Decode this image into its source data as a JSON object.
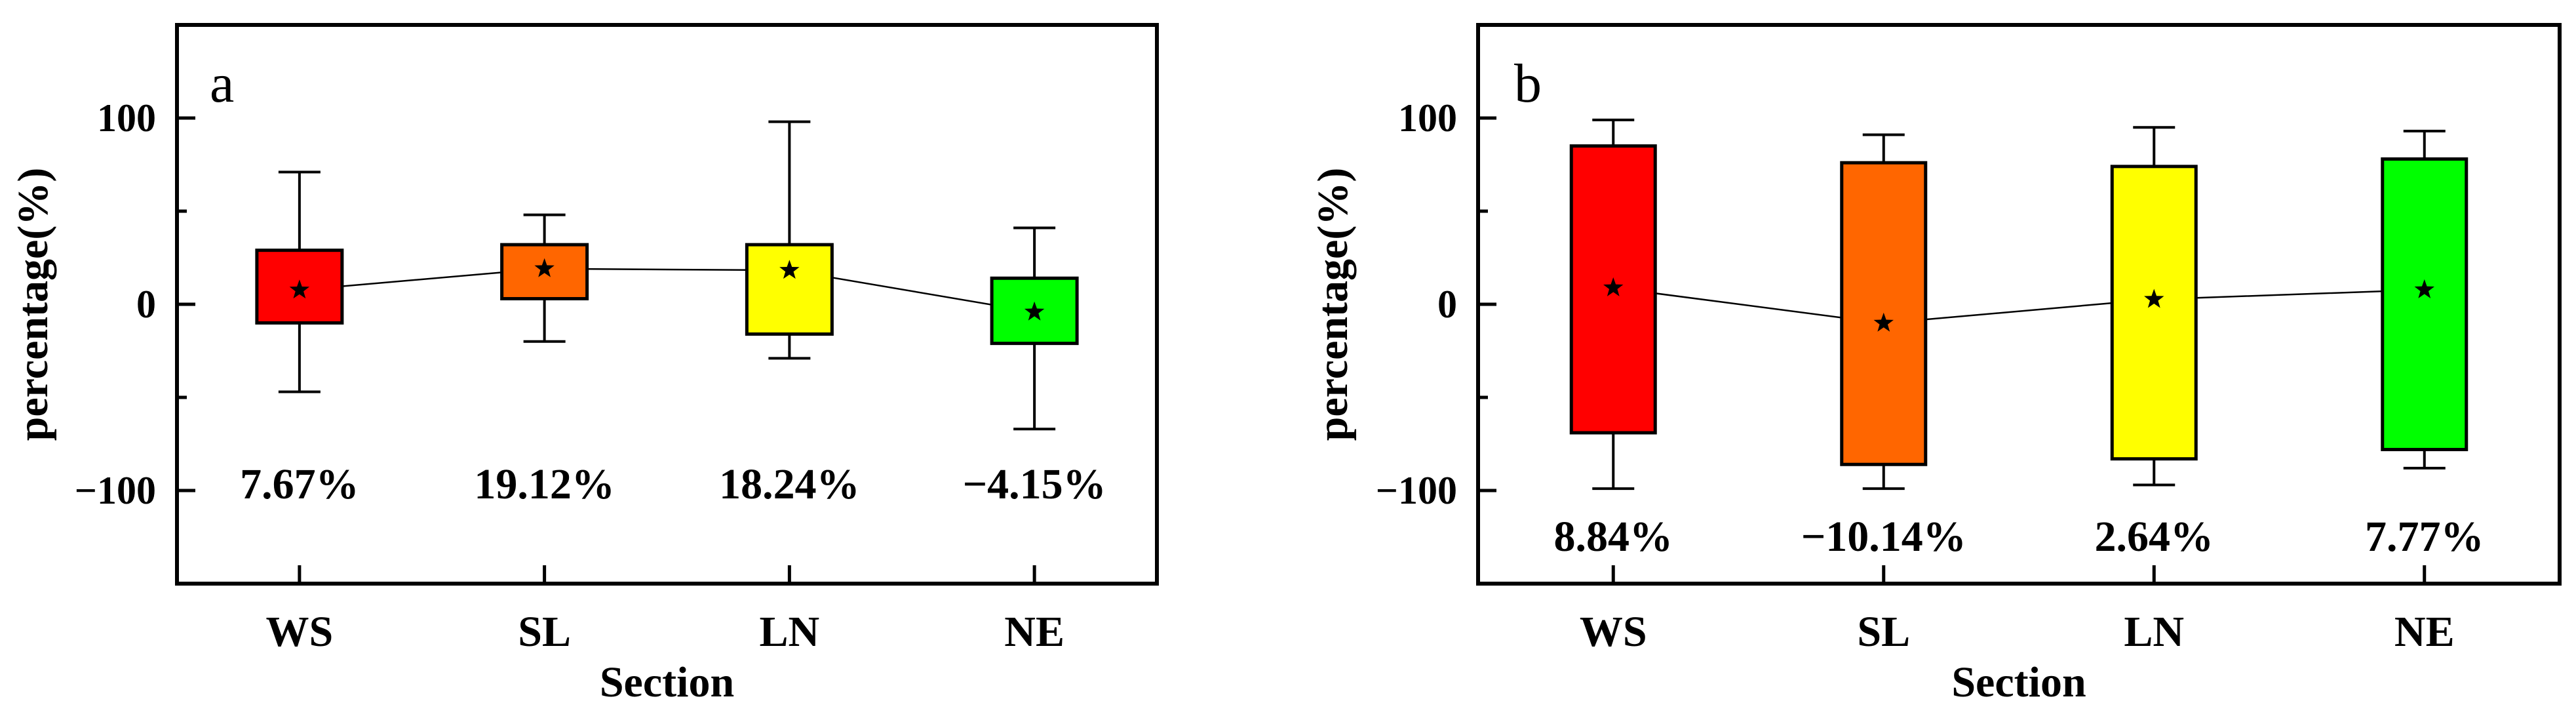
{
  "chart_data": [
    {
      "type": "box",
      "panel_label": "a",
      "xlabel": "Section",
      "ylabel": "percentage(%)",
      "ylim": [
        -150,
        150
      ],
      "yticks": [
        -100,
        0,
        100
      ],
      "ytick_labels": [
        "−100",
        "0",
        "100"
      ],
      "categories": [
        "WS",
        "SL",
        "LN",
        "NE"
      ],
      "colors": [
        "#ff0000",
        "#ff6600",
        "#ffff00",
        "#00ff00"
      ],
      "boxes": [
        {
          "whisker_low": -47,
          "q1": -10,
          "q3": 29,
          "whisker_high": 71,
          "mean": 7.67
        },
        {
          "whisker_low": -20,
          "q1": 3,
          "q3": 32,
          "whisker_high": 48,
          "mean": 19.12
        },
        {
          "whisker_low": -29,
          "q1": -16,
          "q3": 32,
          "whisker_high": 98,
          "mean": 18.24
        },
        {
          "whisker_low": -67,
          "q1": -21,
          "q3": 14,
          "whisker_high": 41,
          "mean": -4.15
        }
      ],
      "mean_labels": [
        "7.67%",
        "19.12%",
        "18.24%",
        "−4.15%"
      ]
    },
    {
      "type": "box",
      "panel_label": "b",
      "xlabel": "Section",
      "ylabel": "percentage(%)",
      "ylim": [
        -150,
        150
      ],
      "yticks": [
        -100,
        0,
        100
      ],
      "ytick_labels": [
        "−100",
        "0",
        "100"
      ],
      "categories": [
        "WS",
        "SL",
        "LN",
        "NE"
      ],
      "colors": [
        "#ff0000",
        "#ff6600",
        "#ffff00",
        "#00ff00"
      ],
      "boxes": [
        {
          "whisker_low": -99,
          "q1": -69,
          "q3": 85,
          "whisker_high": 99,
          "mean": 8.84
        },
        {
          "whisker_low": -99,
          "q1": -86,
          "q3": 76,
          "whisker_high": 91,
          "mean": -10.14
        },
        {
          "whisker_low": -97,
          "q1": -83,
          "q3": 74,
          "whisker_high": 95,
          "mean": 2.64
        },
        {
          "whisker_low": -88,
          "q1": -78,
          "q3": 78,
          "whisker_high": 93,
          "mean": 7.77
        }
      ],
      "mean_labels": [
        "8.84%",
        "−10.14%",
        "2.64%",
        "7.77%"
      ]
    }
  ]
}
